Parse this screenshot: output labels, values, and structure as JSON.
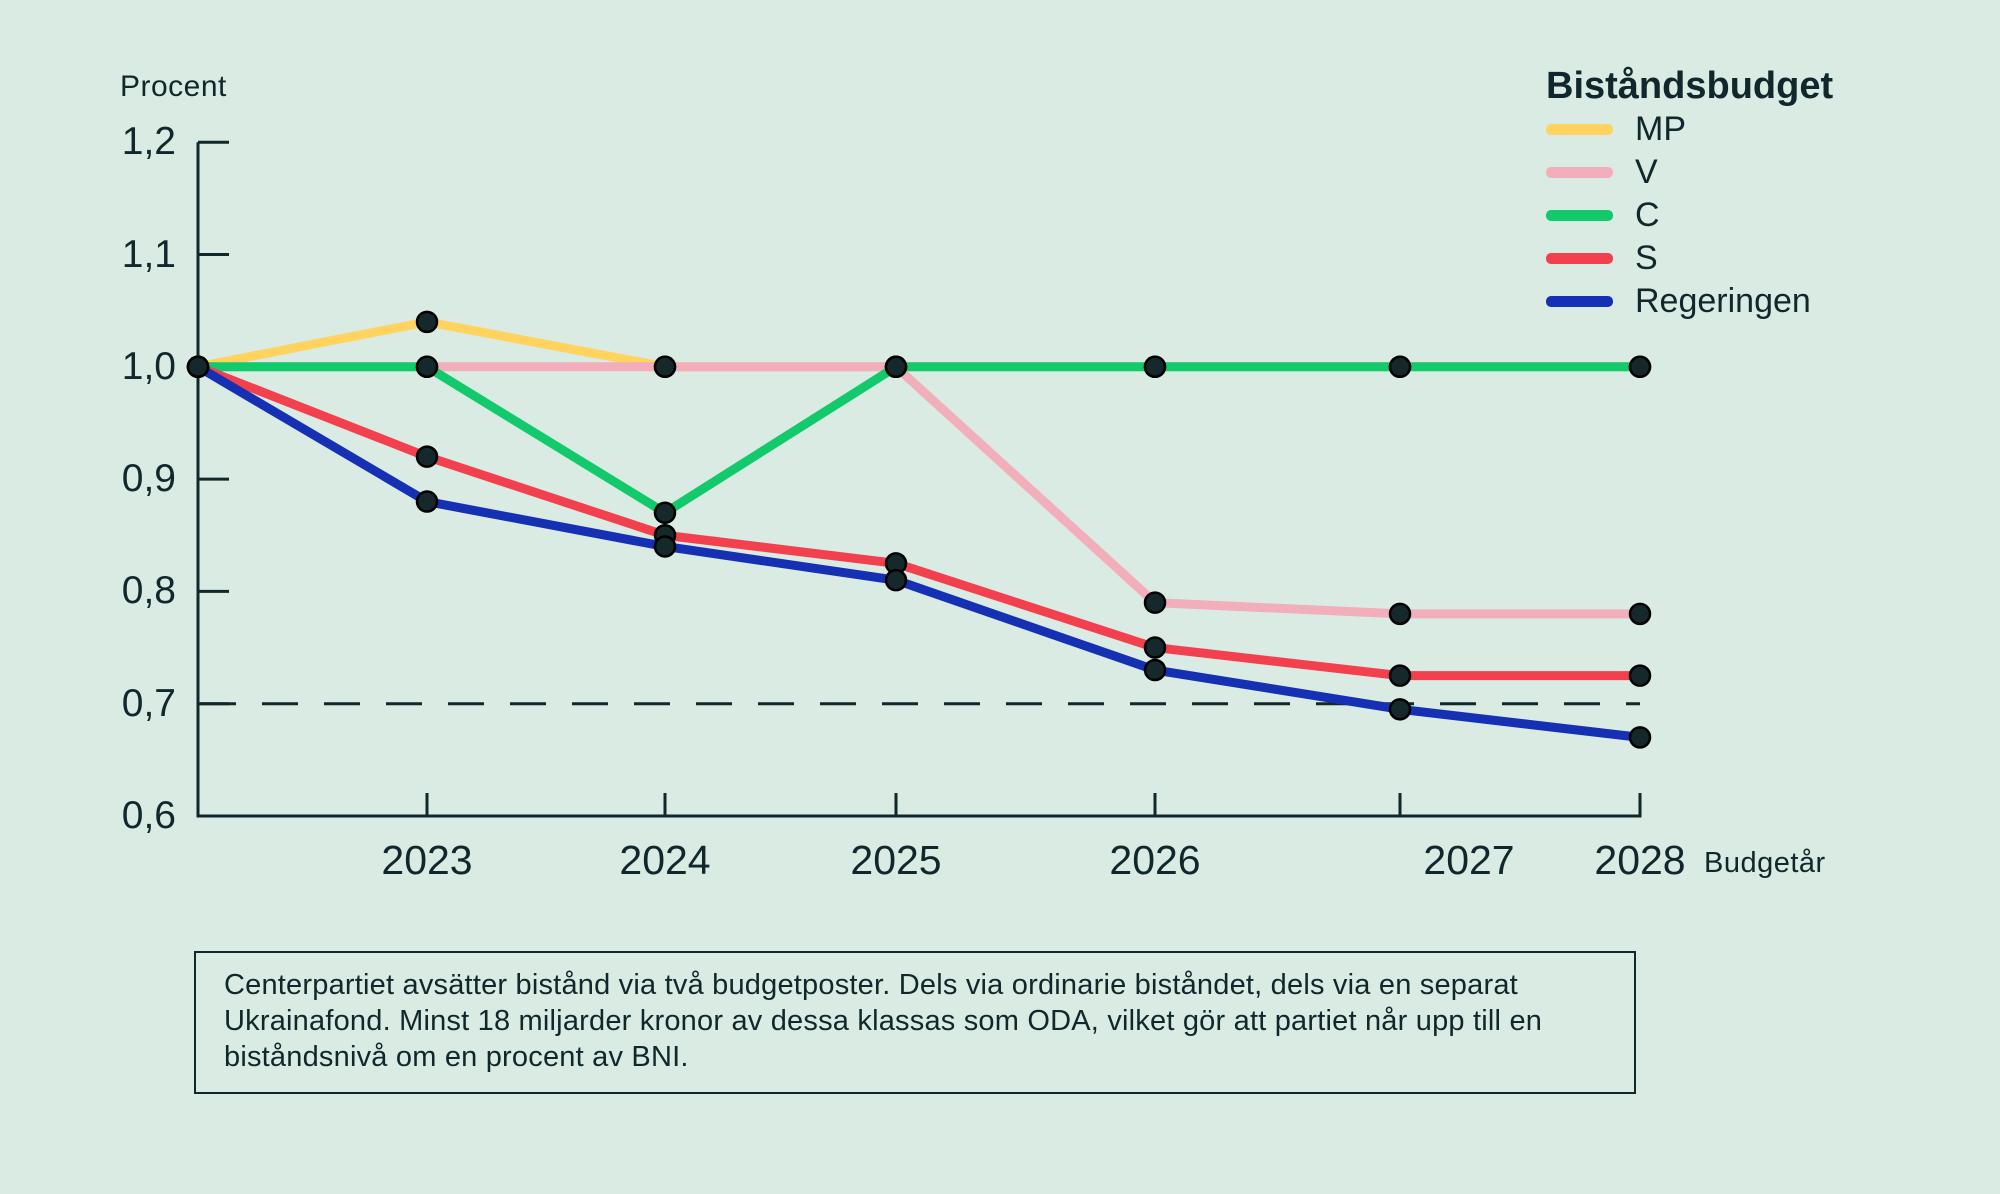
{
  "page": {
    "background": "#D9EBE3",
    "text_color": "#10282B",
    "axis_color": "#10282B"
  },
  "chart_data": {
    "type": "line",
    "legend_title": "Biståndsbudget",
    "ylabel": "Procent",
    "xlabel": "Budgetår",
    "x": [
      "",
      "2023",
      "2024",
      "2025",
      "2026",
      "2027",
      "2028"
    ],
    "series": [
      {
        "name": "MP",
        "color": "#FFD35E",
        "values": [
          1.0,
          1.04,
          1.0,
          1.0,
          1.0,
          1.0,
          1.0
        ]
      },
      {
        "name": "V",
        "color": "#F2AEBB",
        "values": [
          1.0,
          1.0,
          1.0,
          1.0,
          0.79,
          0.78,
          0.78
        ]
      },
      {
        "name": "C",
        "color": "#12C96B",
        "values": [
          1.0,
          1.0,
          0.87,
          1.0,
          1.0,
          1.0,
          1.0
        ]
      },
      {
        "name": "S",
        "color": "#F2404E",
        "values": [
          1.0,
          0.92,
          0.85,
          0.825,
          0.75,
          0.725,
          0.725
        ]
      },
      {
        "name": "Regeringen",
        "color": "#1630B4",
        "values": [
          1.0,
          0.88,
          0.84,
          0.81,
          0.73,
          0.695,
          0.67
        ]
      }
    ],
    "ylim": [
      0.6,
      1.2
    ],
    "yticks": [
      1.2,
      1.1,
      1.0,
      0.9,
      0.8,
      0.7,
      0.6
    ],
    "y_tick_labels": [
      "1,2",
      "1,1",
      "1,0",
      "0,9",
      "0,8",
      "0,7",
      "0,6"
    ],
    "x_tick_labels": [
      "2023",
      "2024",
      "2025",
      "2026",
      "2027",
      "2028"
    ],
    "reference_line_y": 0.7,
    "grid": false,
    "legend_position": "top-right",
    "marker_color": "#15282C"
  },
  "footnote": {
    "lines": [
      "Centerpartiet avsätter bistånd via två budgetposter. Dels via ordinarie biståndet, dels via en separat",
      "Ukrainafond. Minst 18 miljarder kronor av dessa klassas som ODA, vilket gör att partiet når upp till en",
      "biståndsnivå om en procent av BNI."
    ]
  }
}
